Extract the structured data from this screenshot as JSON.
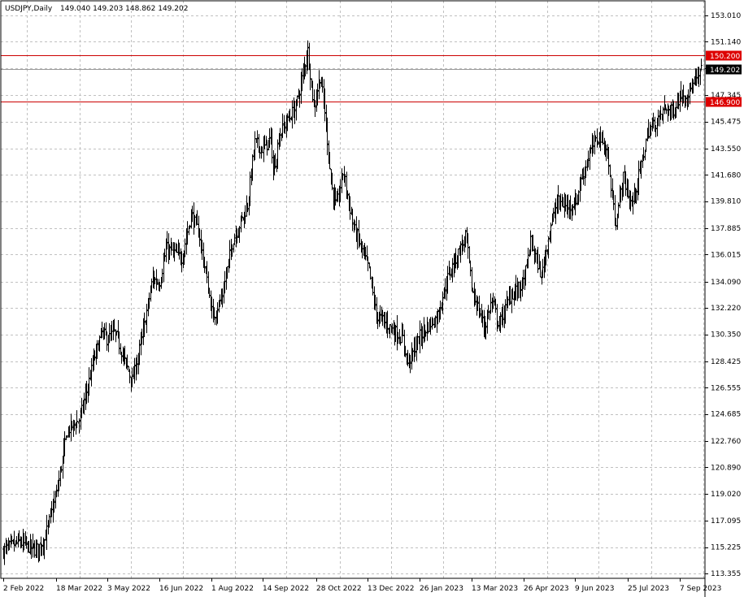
{
  "header": {
    "symbol": "USDJPY,Daily",
    "ohlc": "149.040 149.203 148.862 149.202"
  },
  "colors": {
    "background": "#ffffff",
    "grid": "#c0c0c0",
    "bars": "#000000",
    "level_line": "#cc0000",
    "level_tag": "#dd0000",
    "price_tag": "#000000"
  },
  "chart_data": {
    "type": "ohlc",
    "symbol": "USDJPY",
    "timeframe": "Daily",
    "grid": true,
    "y_ticks": [
      "153.010",
      "151.140",
      "149.270",
      "147.345",
      "145.475",
      "143.550",
      "141.680",
      "139.810",
      "137.885",
      "136.015",
      "134.090",
      "132.220",
      "130.350",
      "128.425",
      "126.555",
      "124.685",
      "122.760",
      "120.890",
      "119.020",
      "117.095",
      "115.225",
      "113.355"
    ],
    "ylim": [
      113.355,
      153.01
    ],
    "x_ticks": [
      "2 Feb 2022",
      "18 Mar 2022",
      "3 May 2022",
      "16 Jun 2022",
      "1 Aug 2022",
      "14 Sep 2022",
      "28 Oct 2022",
      "13 Dec 2022",
      "26 Jan 2023",
      "13 Mar 2023",
      "26 Apr 2023",
      "9 Jun 2023",
      "25 Jul 2023",
      "7 Sep 2023"
    ],
    "current_price": "149.202",
    "levels": [
      {
        "label": "150.200",
        "value": 150.2
      },
      {
        "label": "146.900",
        "value": 146.9
      }
    ],
    "price_anchors": [
      [
        "2 Feb 2022",
        115.0
      ],
      [
        "15 Feb 2022",
        115.6
      ],
      [
        "1 Mar 2022",
        115.0
      ],
      [
        "8 Mar 2022",
        115.7
      ],
      [
        "18 Mar 2022",
        119.0
      ],
      [
        "28 Mar 2022",
        123.5
      ],
      [
        "8 Apr 2022",
        124.3
      ],
      [
        "20 Apr 2022",
        128.3
      ],
      [
        "28 Apr 2022",
        130.5
      ],
      [
        "3 May 2022",
        130.0
      ],
      [
        "9 May 2022",
        130.5
      ],
      [
        "24 May 2022",
        127.0
      ],
      [
        "1 Jun 2022",
        130.0
      ],
      [
        "10 Jun 2022",
        134.3
      ],
      [
        "16 Jun 2022",
        134.0
      ],
      [
        "22 Jun 2022",
        136.5
      ],
      [
        "6 Jul 2022",
        135.8
      ],
      [
        "14 Jul 2022",
        138.9
      ],
      [
        "21 Jul 2022",
        137.5
      ],
      [
        "29 Jul 2022",
        133.5
      ],
      [
        "2 Aug 2022",
        131.5
      ],
      [
        "10 Aug 2022",
        133.0
      ],
      [
        "19 Aug 2022",
        137.0
      ],
      [
        "1 Sep 2022",
        139.5
      ],
      [
        "7 Sep 2022",
        144.0
      ],
      [
        "14 Sep 2022",
        143.5
      ],
      [
        "21 Sep 2022",
        144.3
      ],
      [
        "22 Sep 2022",
        141.5
      ],
      [
        "28 Sep 2022",
        144.6
      ],
      [
        "11 Oct 2022",
        146.5
      ],
      [
        "21 Oct 2022",
        150.5
      ],
      [
        "26 Oct 2022",
        146.4
      ],
      [
        "31 Oct 2022",
        148.7
      ],
      [
        "4 Nov 2022",
        146.6
      ],
      [
        "10 Nov 2022",
        141.0
      ],
      [
        "15 Nov 2022",
        139.3
      ],
      [
        "21 Nov 2022",
        142.0
      ],
      [
        "30 Nov 2022",
        138.0
      ],
      [
        "5 Dec 2022",
        137.0
      ],
      [
        "14 Dec 2022",
        135.0
      ],
      [
        "20 Dec 2022",
        131.8
      ],
      [
        "30 Dec 2022",
        131.0
      ],
      [
        "12 Jan 2023",
        130.0
      ],
      [
        "16 Jan 2023",
        128.3
      ],
      [
        "26 Jan 2023",
        130.2
      ],
      [
        "3 Feb 2023",
        131.0
      ],
      [
        "10 Feb 2023",
        131.5
      ],
      [
        "20 Feb 2023",
        134.5
      ],
      [
        "2 Mar 2023",
        136.3
      ],
      [
        "8 Mar 2023",
        137.3
      ],
      [
        "13 Mar 2023",
        133.5
      ],
      [
        "24 Mar 2023",
        130.8
      ],
      [
        "30 Mar 2023",
        132.8
      ],
      [
        "5 Apr 2023",
        131.0
      ],
      [
        "14 Apr 2023",
        133.0
      ],
      [
        "26 Apr 2023",
        134.0
      ],
      [
        "2 May 2023",
        137.0
      ],
      [
        "11 May 2023",
        134.5
      ],
      [
        "19 May 2023",
        138.0
      ],
      [
        "25 May 2023",
        139.8
      ],
      [
        "1 Jun 2023",
        139.5
      ],
      [
        "9 Jun 2023",
        139.6
      ],
      [
        "16 Jun 2023",
        141.8
      ],
      [
        "23 Jun 2023",
        143.5
      ],
      [
        "30 Jun 2023",
        144.5
      ],
      [
        "7 Jul 2023",
        143.2
      ],
      [
        "14 Jul 2023",
        138.2
      ],
      [
        "21 Jul 2023",
        141.5
      ],
      [
        "28 Jul 2023",
        139.5
      ],
      [
        "4 Aug 2023",
        141.8
      ],
      [
        "11 Aug 2023",
        144.8
      ],
      [
        "18 Aug 2023",
        145.4
      ],
      [
        "25 Aug 2023",
        146.4
      ],
      [
        "1 Sep 2023",
        146.2
      ],
      [
        "7 Sep 2023",
        147.3
      ],
      [
        "14 Sep 2023",
        147.5
      ],
      [
        "21 Sep 2023",
        148.4
      ],
      [
        "26 Sep 2023",
        149.2
      ]
    ]
  }
}
